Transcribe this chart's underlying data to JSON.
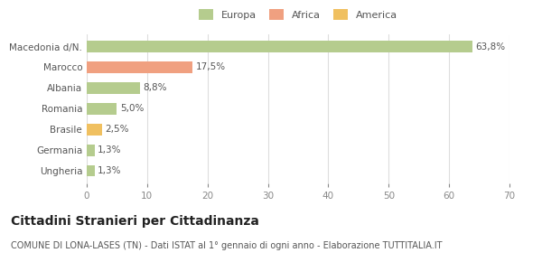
{
  "categories": [
    "Ungheria",
    "Germania",
    "Brasile",
    "Romania",
    "Albania",
    "Marocco",
    "Macedonia d/N."
  ],
  "values": [
    1.3,
    1.3,
    2.5,
    5.0,
    8.8,
    17.5,
    63.8
  ],
  "labels": [
    "1,3%",
    "1,3%",
    "2,5%",
    "5,0%",
    "8,8%",
    "17,5%",
    "63,8%"
  ],
  "colors": [
    "#b5cc8e",
    "#b5cc8e",
    "#f0c060",
    "#b5cc8e",
    "#b5cc8e",
    "#f0a080",
    "#b5cc8e"
  ],
  "legend": [
    {
      "label": "Europa",
      "color": "#b5cc8e"
    },
    {
      "label": "Africa",
      "color": "#f0a080"
    },
    {
      "label": "America",
      "color": "#f0c060"
    }
  ],
  "xlim": [
    0,
    70
  ],
  "xticks": [
    0,
    10,
    20,
    30,
    40,
    50,
    60,
    70
  ],
  "title": "Cittadini Stranieri per Cittadinanza",
  "subtitle": "COMUNE DI LONA-LASES (TN) - Dati ISTAT al 1° gennaio di ogni anno - Elaborazione TUTTITALIA.IT",
  "background_color": "#ffffff",
  "grid_color": "#dddddd",
  "bar_height": 0.55,
  "label_fontsize": 7.5,
  "tick_fontsize": 7.5,
  "title_fontsize": 10,
  "subtitle_fontsize": 7,
  "legend_fontsize": 8
}
